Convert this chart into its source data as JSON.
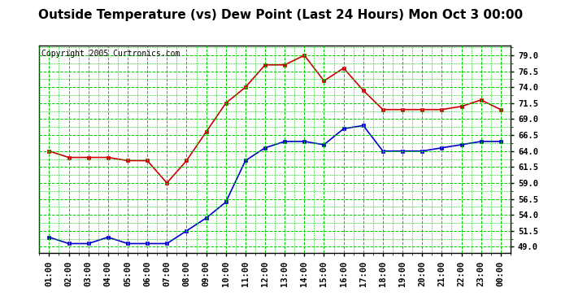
{
  "title": "Outside Temperature (vs) Dew Point (Last 24 Hours) Mon Oct 3 00:00",
  "copyright": "Copyright 2005 Curtronics.com",
  "x_labels": [
    "01:00",
    "02:00",
    "03:00",
    "04:00",
    "05:00",
    "06:00",
    "07:00",
    "08:00",
    "09:00",
    "10:00",
    "11:00",
    "12:00",
    "13:00",
    "14:00",
    "15:00",
    "16:00",
    "17:00",
    "18:00",
    "19:00",
    "20:00",
    "21:00",
    "22:00",
    "23:00",
    "00:00"
  ],
  "temp_data": [
    64.0,
    63.0,
    63.0,
    63.0,
    62.5,
    62.5,
    59.0,
    62.5,
    67.0,
    71.5,
    74.0,
    77.5,
    77.5,
    79.0,
    75.0,
    77.0,
    73.5,
    70.5,
    70.5,
    70.5,
    70.5,
    71.0,
    72.0,
    70.5
  ],
  "dew_data": [
    50.5,
    49.5,
    49.5,
    50.5,
    49.5,
    49.5,
    49.5,
    51.5,
    53.5,
    56.0,
    62.5,
    64.5,
    65.5,
    65.5,
    65.0,
    67.5,
    68.0,
    64.0,
    64.0,
    64.0,
    64.5,
    65.0,
    65.5,
    65.5
  ],
  "ylim_min": 48.0,
  "ylim_max": 80.5,
  "yticks": [
    49.0,
    51.5,
    54.0,
    56.5,
    59.0,
    61.5,
    64.0,
    66.5,
    69.0,
    71.5,
    74.0,
    76.5,
    79.0
  ],
  "temp_color": "#cc0000",
  "dew_color": "#0000cc",
  "grid_color": "#00cc00",
  "bg_color": "#ffffff",
  "title_fontsize": 11,
  "copyright_fontsize": 7,
  "tick_fontsize": 7.5
}
